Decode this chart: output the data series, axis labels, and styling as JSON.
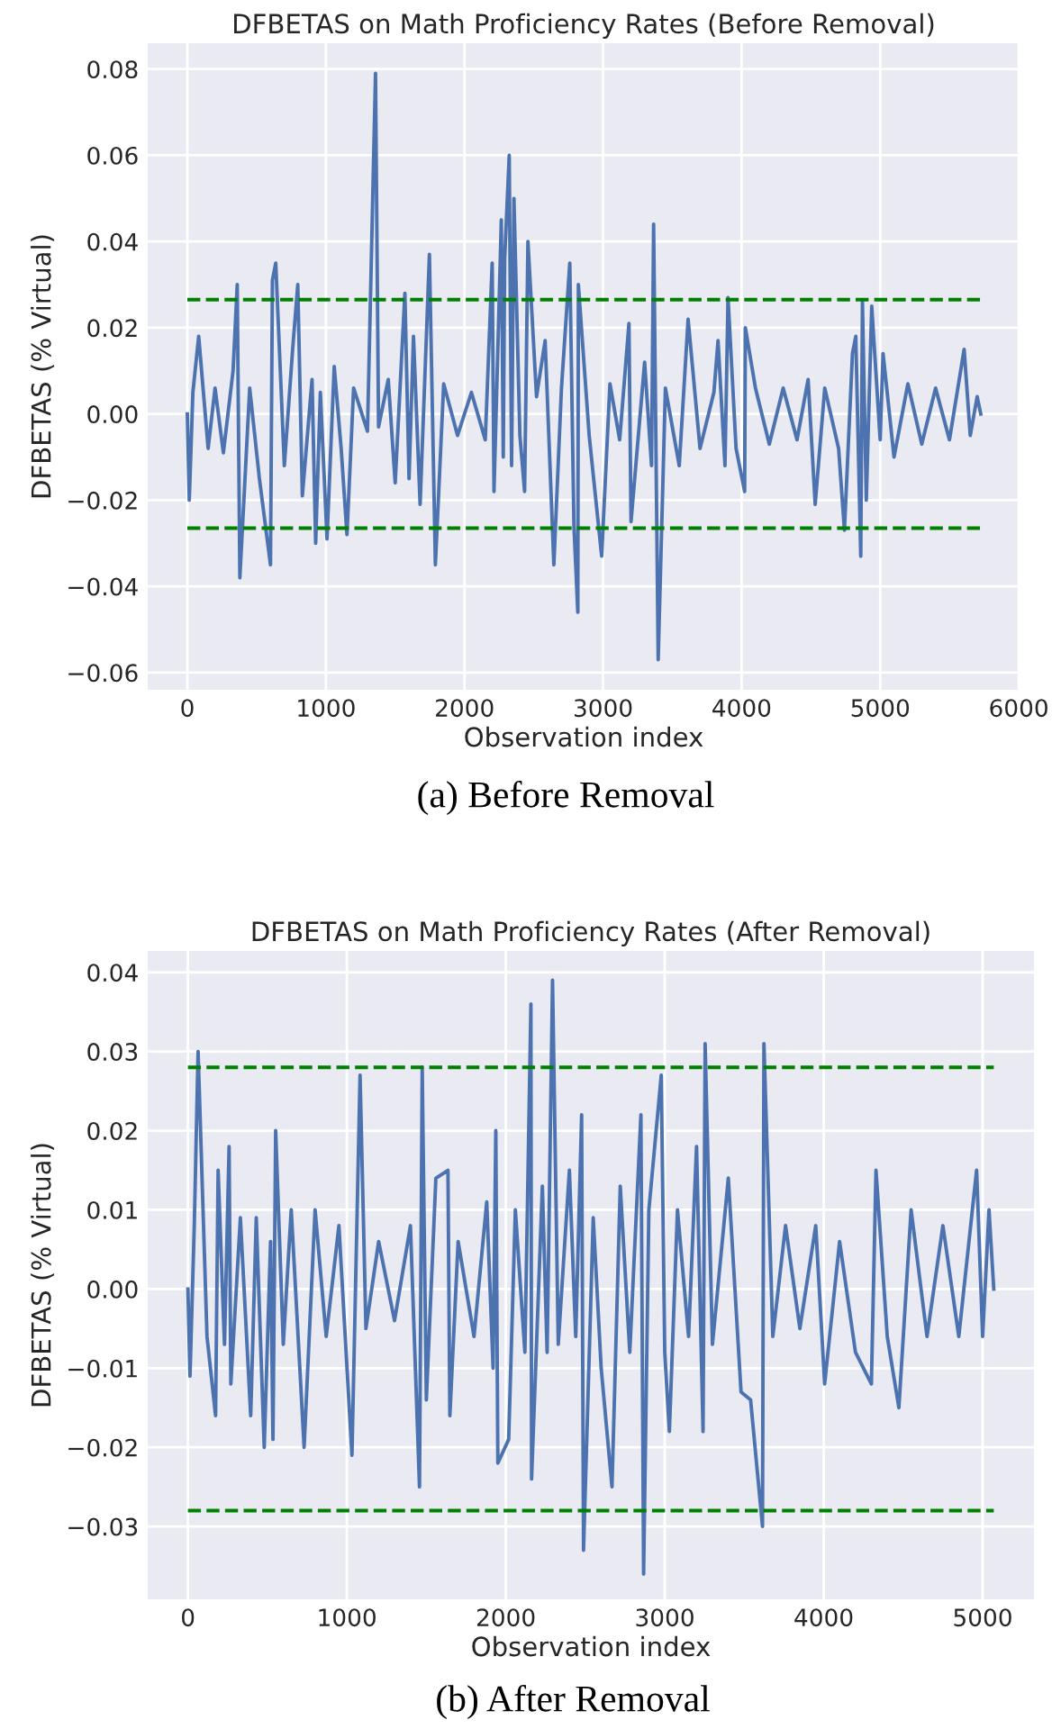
{
  "chart_data": [
    {
      "type": "line",
      "title": "DFBETAS on Math Proficiency Rates (Before Removal)",
      "xlabel": "Observation index",
      "ylabel": "DFBETAS (% Virtual)",
      "annotations": [
        "(a) Before Removal"
      ],
      "x": [
        0,
        14,
        40,
        82,
        150,
        200,
        260,
        330,
        360,
        379,
        450,
        520,
        600,
        614,
        638,
        700,
        760,
        797,
        830,
        900,
        926,
        960,
        1008,
        1060,
        1110,
        1152,
        1200,
        1300,
        1358,
        1380,
        1450,
        1500,
        1570,
        1600,
        1632,
        1680,
        1747,
        1790,
        1850,
        1950,
        2050,
        2150,
        2200,
        2213,
        2266,
        2280,
        2290,
        2323,
        2340,
        2357,
        2400,
        2434,
        2458,
        2520,
        2582,
        2645,
        2700,
        2760,
        2790,
        2818,
        2822,
        2900,
        2990,
        3050,
        3120,
        3187,
        3202,
        3300,
        3350,
        3365,
        3398,
        3450,
        3550,
        3614,
        3700,
        3800,
        3830,
        3880,
        3902,
        3960,
        4022,
        4027,
        4100,
        4200,
        4300,
        4400,
        4480,
        4531,
        4600,
        4700,
        4742,
        4800,
        4824,
        4860,
        4872,
        4900,
        4939,
        5000,
        5021,
        5100,
        5200,
        5300,
        5400,
        5500,
        5606,
        5650,
        5700,
        5726
      ],
      "series": [
        {
          "color": "#4c72b0",
          "values": [
            0.0,
            -0.02,
            0.005,
            0.018,
            -0.008,
            0.006,
            -0.009,
            0.01,
            0.03,
            -0.038,
            0.006,
            -0.015,
            -0.035,
            0.031,
            0.035,
            -0.012,
            0.015,
            0.03,
            -0.019,
            0.008,
            -0.03,
            0.005,
            -0.029,
            0.011,
            -0.008,
            -0.028,
            0.006,
            -0.004,
            0.079,
            -0.003,
            0.008,
            -0.016,
            0.028,
            -0.015,
            0.018,
            -0.021,
            0.037,
            -0.035,
            0.007,
            -0.005,
            0.005,
            -0.006,
            0.035,
            -0.018,
            0.045,
            -0.01,
            0.036,
            0.06,
            -0.012,
            0.05,
            -0.005,
            -0.018,
            0.04,
            0.004,
            0.017,
            -0.035,
            0.006,
            0.035,
            -0.026,
            -0.046,
            0.03,
            -0.005,
            -0.033,
            0.007,
            -0.006,
            0.021,
            -0.025,
            0.012,
            -0.012,
            0.044,
            -0.057,
            0.006,
            -0.012,
            0.022,
            -0.008,
            0.005,
            0.017,
            -0.012,
            0.027,
            -0.008,
            -0.018,
            0.02,
            0.006,
            -0.007,
            0.006,
            -0.006,
            0.008,
            -0.021,
            0.006,
            -0.008,
            -0.027,
            0.014,
            0.018,
            -0.033,
            0.026,
            -0.02,
            0.025,
            -0.006,
            0.014,
            -0.01,
            0.007,
            -0.007,
            0.006,
            -0.006,
            0.015,
            -0.005,
            0.004,
            0.0
          ]
        }
      ],
      "xlim": [
        -286,
        6006
      ],
      "ylim": [
        -0.064,
        0.086
      ],
      "xticks": [
        0,
        1000,
        2000,
        3000,
        4000,
        5000,
        6000
      ],
      "yticks": [
        {
          "value": -0.06,
          "label": "−0.06"
        },
        {
          "value": -0.04,
          "label": "−0.04"
        },
        {
          "value": -0.02,
          "label": "−0.02"
        },
        {
          "value": 0,
          "label": "0.00"
        },
        {
          "value": 0.02,
          "label": "0.02"
        },
        {
          "value": 0.04,
          "label": "0.04"
        },
        {
          "value": 0.06,
          "label": "0.06"
        },
        {
          "value": 0.08,
          "label": "0.08"
        }
      ],
      "ref_lines": [
        {
          "axis": "y",
          "value": 0.0265,
          "color": "#008000",
          "line_style": "dashed"
        },
        {
          "axis": "y",
          "value": -0.0265,
          "color": "#008000",
          "line_style": "dashed"
        }
      ],
      "grid": true
    },
    {
      "type": "line",
      "title": "DFBETAS on Math Proficiency Rates (After Removal)",
      "xlabel": "Observation index",
      "ylabel": "DFBETAS (% Virtual)",
      "annotations": [
        "(b) After Removal"
      ],
      "x": [
        0,
        13,
        40,
        64,
        120,
        174,
        190,
        230,
        259,
        270,
        330,
        395,
        430,
        480,
        520,
        535,
        552,
        600,
        650,
        731,
        800,
        870,
        950,
        1032,
        1083,
        1120,
        1200,
        1300,
        1400,
        1457,
        1474,
        1500,
        1560,
        1636,
        1648,
        1700,
        1800,
        1880,
        1920,
        1937,
        1950,
        2018,
        2060,
        2120,
        2158,
        2162,
        2230,
        2260,
        2294,
        2330,
        2400,
        2440,
        2477,
        2489,
        2550,
        2600,
        2668,
        2720,
        2780,
        2850,
        2867,
        2900,
        2978,
        3000,
        3029,
        3080,
        3150,
        3200,
        3241,
        3254,
        3300,
        3400,
        3480,
        3540,
        3615,
        3624,
        3680,
        3760,
        3850,
        3950,
        4006,
        4100,
        4200,
        4300,
        4329,
        4400,
        4473,
        4550,
        4650,
        4750,
        4850,
        4962,
        5000,
        5040,
        5070
      ],
      "series": [
        {
          "color": "#4c72b0",
          "values": [
            0.0,
            -0.011,
            0.008,
            0.03,
            -0.006,
            -0.016,
            0.015,
            -0.007,
            0.018,
            -0.012,
            0.009,
            -0.016,
            0.009,
            -0.02,
            0.006,
            -0.019,
            0.02,
            -0.007,
            0.01,
            -0.02,
            0.01,
            -0.006,
            0.008,
            -0.021,
            0.027,
            -0.005,
            0.006,
            -0.004,
            0.008,
            -0.025,
            0.028,
            -0.014,
            0.014,
            0.015,
            -0.016,
            0.006,
            -0.006,
            0.011,
            -0.01,
            0.02,
            -0.022,
            -0.019,
            0.01,
            -0.008,
            0.036,
            -0.024,
            0.013,
            -0.008,
            0.039,
            -0.007,
            0.015,
            -0.006,
            0.022,
            -0.033,
            0.009,
            -0.01,
            -0.025,
            0.013,
            -0.008,
            0.022,
            -0.036,
            0.01,
            0.027,
            -0.008,
            -0.018,
            0.01,
            -0.006,
            0.018,
            -0.018,
            0.031,
            -0.007,
            0.014,
            -0.013,
            -0.014,
            -0.03,
            0.031,
            -0.006,
            0.008,
            -0.005,
            0.008,
            -0.012,
            0.006,
            -0.008,
            -0.012,
            0.015,
            -0.006,
            -0.015,
            0.01,
            -0.006,
            0.008,
            -0.006,
            0.015,
            -0.006,
            0.01,
            0.0
          ]
        }
      ],
      "xlim": [
        -253,
        5323
      ],
      "ylim": [
        -0.0392,
        0.0427
      ],
      "xticks": [
        0,
        1000,
        2000,
        3000,
        4000,
        5000
      ],
      "yticks": [
        {
          "value": -0.03,
          "label": "−0.03"
        },
        {
          "value": -0.02,
          "label": "−0.02"
        },
        {
          "value": -0.01,
          "label": "−0.01"
        },
        {
          "value": 0,
          "label": "0.00"
        },
        {
          "value": 0.01,
          "label": "0.01"
        },
        {
          "value": 0.02,
          "label": "0.02"
        },
        {
          "value": 0.03,
          "label": "0.03"
        },
        {
          "value": 0.04,
          "label": "0.04"
        }
      ],
      "ref_lines": [
        {
          "axis": "y",
          "value": 0.028,
          "color": "#008000",
          "line_style": "dashed"
        },
        {
          "axis": "y",
          "value": -0.028,
          "color": "#008000",
          "line_style": "dashed"
        }
      ],
      "grid": true
    }
  ]
}
